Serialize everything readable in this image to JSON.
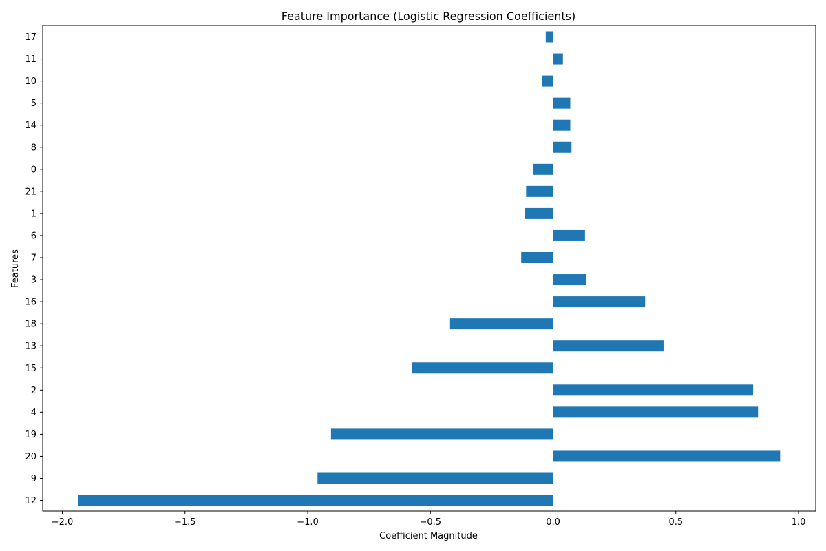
{
  "chart_data": {
    "type": "bar",
    "orientation": "horizontal",
    "title": "Feature Importance (Logistic Regression Coefficients)",
    "xlabel": "Coefficient Magnitude",
    "ylabel": "Features",
    "bar_color": "#1f77b4",
    "xlim": [
      -2.08,
      1.07
    ],
    "xticks": [
      -2.0,
      -1.5,
      -1.0,
      -0.5,
      0.0,
      0.5,
      1.0
    ],
    "xtick_labels": [
      "−2.0",
      "−1.5",
      "−1.0",
      "−0.5",
      "0.0",
      "0.5",
      "1.0"
    ],
    "grid": false,
    "categories": [
      "17",
      "11",
      "10",
      "5",
      "14",
      "8",
      "0",
      "21",
      "1",
      "6",
      "7",
      "3",
      "16",
      "18",
      "13",
      "15",
      "2",
      "4",
      "19",
      "20",
      "9",
      "12"
    ],
    "values": [
      -0.03,
      0.04,
      -0.045,
      0.07,
      0.07,
      0.075,
      -0.08,
      -0.11,
      -0.115,
      0.13,
      -0.13,
      0.135,
      0.375,
      -0.42,
      0.45,
      -0.575,
      0.815,
      0.835,
      -0.905,
      0.925,
      -0.96,
      -1.935
    ]
  }
}
